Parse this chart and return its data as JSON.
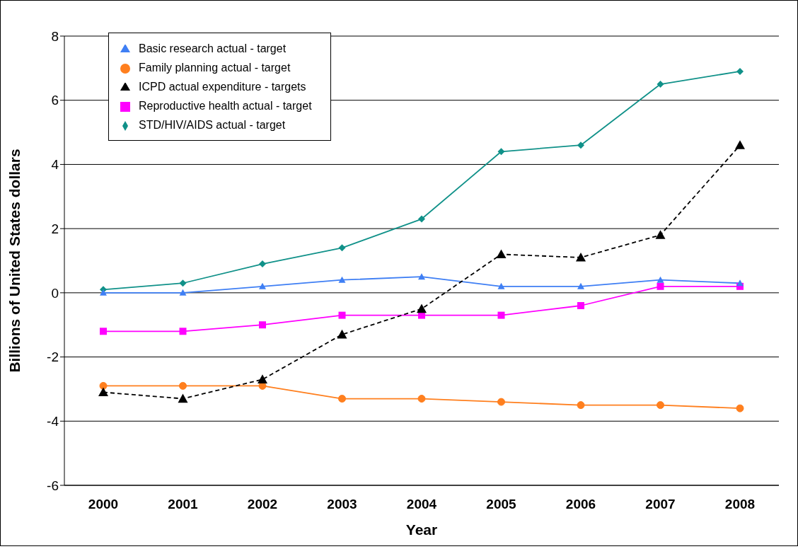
{
  "chart_data": {
    "type": "line",
    "xlabel": "Year",
    "ylabel": "Billions of United States dollars",
    "categories": [
      "2000",
      "2001",
      "2002",
      "2003",
      "2004",
      "2005",
      "2006",
      "2007",
      "2008"
    ],
    "ylim": [
      -6,
      8
    ],
    "yticks": [
      -6,
      -4,
      -2,
      0,
      2,
      4,
      6,
      8
    ],
    "grid": "y",
    "legend": "top left",
    "series": [
      {
        "name": "Family planning actual - target",
        "color": "#ff7f1e",
        "marker": "circle",
        "line_style": "solid",
        "values": [
          -2.9,
          -2.9,
          -2.9,
          -3.3,
          -3.3,
          -3.4,
          -3.5,
          -3.5,
          -3.6
        ]
      },
      {
        "name": "Reproductive health actual - target",
        "color": "#ff00ff",
        "marker": "square",
        "line_style": "solid",
        "values": [
          -1.2,
          -1.2,
          -1.0,
          -0.7,
          -0.7,
          -0.7,
          -0.4,
          0.2,
          0.2
        ]
      },
      {
        "name": "STD/HIV/AIDS actual - target",
        "color": "#109189",
        "marker": "diamond",
        "line_style": "solid",
        "values": [
          0.1,
          0.3,
          0.9,
          1.4,
          2.3,
          4.4,
          4.6,
          6.5,
          6.9
        ]
      },
      {
        "name": "Basic research actual - target",
        "color": "#3f7ff4",
        "marker": "triangle",
        "line_style": "solid",
        "values": [
          0.0,
          0.0,
          0.2,
          0.4,
          0.5,
          0.2,
          0.2,
          0.4,
          0.3
        ]
      },
      {
        "name": "ICPD actual expenditure - targets",
        "color": "#000000",
        "marker": "triangle",
        "line_style": "dashed",
        "values": [
          -3.1,
          -3.3,
          -2.7,
          -1.3,
          -0.5,
          1.2,
          1.1,
          1.8,
          4.6
        ]
      }
    ]
  }
}
